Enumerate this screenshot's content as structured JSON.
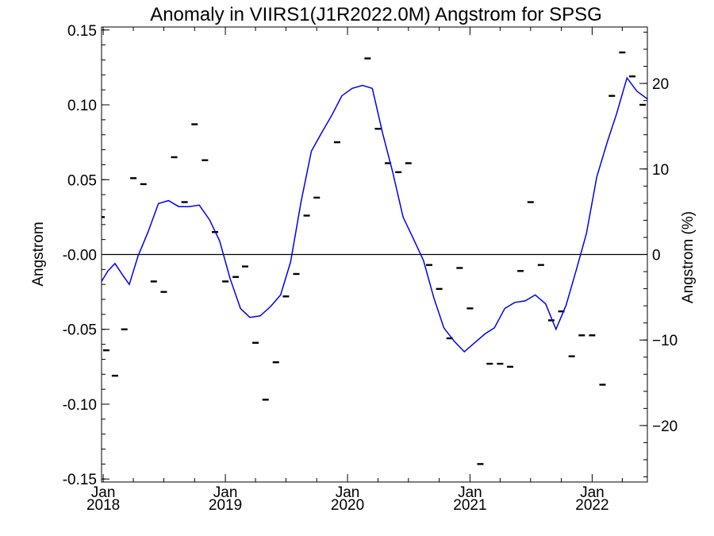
{
  "chart_data": {
    "type": "line",
    "title": "Anomaly in VIIRS1(J1R2022.0M) Angstrom for SPSG",
    "ylabel": "Angstrom",
    "y2label": "Angstrom (%)",
    "ylim": [
      -0.152,
      0.152
    ],
    "y2lim": [
      -26.6,
      26.6
    ],
    "xlim": [
      "2017-12-27",
      "2022-06-15"
    ],
    "y_ticks": [
      0.15,
      0.1,
      0.05,
      0.0,
      -0.05,
      -0.1,
      -0.15
    ],
    "y_tick_labels": [
      "0.15",
      "0.10",
      "0.05",
      "-0.00",
      "-0.05",
      "-0.10",
      "-0.15"
    ],
    "y2_ticks": [
      20,
      10,
      0,
      -10,
      -20
    ],
    "y2_tick_labels": [
      "20",
      "10",
      "0",
      "−10",
      "−20"
    ],
    "x_ticks": [
      {
        "date": "2018-01-01",
        "month": "Jan",
        "year": "2018"
      },
      {
        "date": "2019-01-01",
        "month": "Jan",
        "year": "2019"
      },
      {
        "date": "2020-01-01",
        "month": "Jan",
        "year": "2020"
      },
      {
        "date": "2021-01-01",
        "month": "Jan",
        "year": "2021"
      },
      {
        "date": "2022-01-01",
        "month": "Jan",
        "year": "2022"
      }
    ],
    "zero_line": true,
    "grid": false,
    "series": [
      {
        "kind": "points",
        "color": "#000000",
        "points": [
          {
            "x": "2017-12-27",
            "y": 0.025
          },
          {
            "x": "2018-01-10",
            "y": -0.064
          },
          {
            "x": "2018-02-05",
            "y": -0.081
          },
          {
            "x": "2018-03-05",
            "y": -0.05
          },
          {
            "x": "2018-04-01",
            "y": 0.051
          },
          {
            "x": "2018-05-01",
            "y": 0.047
          },
          {
            "x": "2018-06-01",
            "y": -0.018
          },
          {
            "x": "2018-07-01",
            "y": -0.025
          },
          {
            "x": "2018-08-01",
            "y": 0.065
          },
          {
            "x": "2018-09-01",
            "y": 0.035
          },
          {
            "x": "2018-10-01",
            "y": 0.087
          },
          {
            "x": "2018-11-01",
            "y": 0.063
          },
          {
            "x": "2018-12-01",
            "y": 0.015
          },
          {
            "x": "2019-01-01",
            "y": -0.018
          },
          {
            "x": "2019-02-01",
            "y": -0.015
          },
          {
            "x": "2019-03-01",
            "y": -0.008
          },
          {
            "x": "2019-04-01",
            "y": -0.059
          },
          {
            "x": "2019-05-01",
            "y": -0.097
          },
          {
            "x": "2019-06-01",
            "y": -0.072
          },
          {
            "x": "2019-07-01",
            "y": -0.028
          },
          {
            "x": "2019-08-01",
            "y": -0.013
          },
          {
            "x": "2019-09-01",
            "y": 0.026
          },
          {
            "x": "2019-10-01",
            "y": 0.038
          },
          {
            "x": "2019-12-01",
            "y": 0.075
          },
          {
            "x": "2020-03-01",
            "y": 0.131
          },
          {
            "x": "2020-04-01",
            "y": 0.084
          },
          {
            "x": "2020-05-01",
            "y": 0.061
          },
          {
            "x": "2020-06-01",
            "y": 0.055
          },
          {
            "x": "2020-07-01",
            "y": 0.061
          },
          {
            "x": "2020-09-01",
            "y": -0.007
          },
          {
            "x": "2020-10-01",
            "y": -0.023
          },
          {
            "x": "2020-11-01",
            "y": -0.056
          },
          {
            "x": "2020-12-01",
            "y": -0.009
          },
          {
            "x": "2021-01-01",
            "y": -0.036
          },
          {
            "x": "2021-02-01",
            "y": -0.14
          },
          {
            "x": "2021-03-01",
            "y": -0.073
          },
          {
            "x": "2021-04-01",
            "y": -0.073
          },
          {
            "x": "2021-05-01",
            "y": -0.075
          },
          {
            "x": "2021-06-01",
            "y": -0.011
          },
          {
            "x": "2021-07-01",
            "y": 0.035
          },
          {
            "x": "2021-08-01",
            "y": -0.007
          },
          {
            "x": "2021-09-01",
            "y": -0.044
          },
          {
            "x": "2021-10-01",
            "y": -0.038
          },
          {
            "x": "2021-11-01",
            "y": -0.068
          },
          {
            "x": "2021-12-01",
            "y": -0.054
          },
          {
            "x": "2022-01-01",
            "y": -0.054
          },
          {
            "x": "2022-02-01",
            "y": -0.087
          },
          {
            "x": "2022-03-01",
            "y": 0.106
          },
          {
            "x": "2022-04-01",
            "y": 0.135
          },
          {
            "x": "2022-05-01",
            "y": 0.119
          },
          {
            "x": "2022-06-01",
            "y": 0.1
          }
        ]
      },
      {
        "kind": "line",
        "color": "#0000ee",
        "points": [
          {
            "x": "2017-12-27",
            "y": -0.018
          },
          {
            "x": "2018-01-15",
            "y": -0.011
          },
          {
            "x": "2018-02-05",
            "y": -0.006
          },
          {
            "x": "2018-03-01",
            "y": -0.014
          },
          {
            "x": "2018-03-20",
            "y": -0.02
          },
          {
            "x": "2018-04-15",
            "y": -0.001
          },
          {
            "x": "2018-05-15",
            "y": 0.015
          },
          {
            "x": "2018-06-15",
            "y": 0.034
          },
          {
            "x": "2018-07-15",
            "y": 0.036
          },
          {
            "x": "2018-08-15",
            "y": 0.032
          },
          {
            "x": "2018-09-15",
            "y": 0.032
          },
          {
            "x": "2018-10-15",
            "y": 0.033
          },
          {
            "x": "2018-11-15",
            "y": 0.023
          },
          {
            "x": "2018-12-15",
            "y": 0.009
          },
          {
            "x": "2019-01-15",
            "y": -0.016
          },
          {
            "x": "2019-02-15",
            "y": -0.036
          },
          {
            "x": "2019-03-15",
            "y": -0.042
          },
          {
            "x": "2019-04-15",
            "y": -0.041
          },
          {
            "x": "2019-05-15",
            "y": -0.035
          },
          {
            "x": "2019-06-15",
            "y": -0.027
          },
          {
            "x": "2019-07-15",
            "y": -0.005
          },
          {
            "x": "2019-08-15",
            "y": 0.035
          },
          {
            "x": "2019-09-15",
            "y": 0.069
          },
          {
            "x": "2019-10-15",
            "y": 0.081
          },
          {
            "x": "2019-11-15",
            "y": 0.093
          },
          {
            "x": "2019-12-15",
            "y": 0.106
          },
          {
            "x": "2020-01-15",
            "y": 0.111
          },
          {
            "x": "2020-02-15",
            "y": 0.113
          },
          {
            "x": "2020-03-15",
            "y": 0.111
          },
          {
            "x": "2020-04-15",
            "y": 0.081
          },
          {
            "x": "2020-05-15",
            "y": 0.055
          },
          {
            "x": "2020-06-15",
            "y": 0.025
          },
          {
            "x": "2020-07-15",
            "y": 0.011
          },
          {
            "x": "2020-08-15",
            "y": -0.004
          },
          {
            "x": "2020-09-15",
            "y": -0.029
          },
          {
            "x": "2020-10-15",
            "y": -0.049
          },
          {
            "x": "2020-11-15",
            "y": -0.058
          },
          {
            "x": "2020-12-15",
            "y": -0.065
          },
          {
            "x": "2021-01-15",
            "y": -0.059
          },
          {
            "x": "2021-02-15",
            "y": -0.053
          },
          {
            "x": "2021-03-15",
            "y": -0.049
          },
          {
            "x": "2021-04-15",
            "y": -0.036
          },
          {
            "x": "2021-05-15",
            "y": -0.032
          },
          {
            "x": "2021-06-15",
            "y": -0.031
          },
          {
            "x": "2021-07-15",
            "y": -0.027
          },
          {
            "x": "2021-08-15",
            "y": -0.033
          },
          {
            "x": "2021-09-15",
            "y": -0.05
          },
          {
            "x": "2021-10-15",
            "y": -0.034
          },
          {
            "x": "2021-11-15",
            "y": -0.01
          },
          {
            "x": "2021-12-15",
            "y": 0.014
          },
          {
            "x": "2022-01-15",
            "y": 0.052
          },
          {
            "x": "2022-02-15",
            "y": 0.075
          },
          {
            "x": "2022-03-15",
            "y": 0.094
          },
          {
            "x": "2022-04-15",
            "y": 0.118
          },
          {
            "x": "2022-05-15",
            "y": 0.109
          },
          {
            "x": "2022-06-15",
            "y": 0.104
          }
        ]
      }
    ]
  }
}
